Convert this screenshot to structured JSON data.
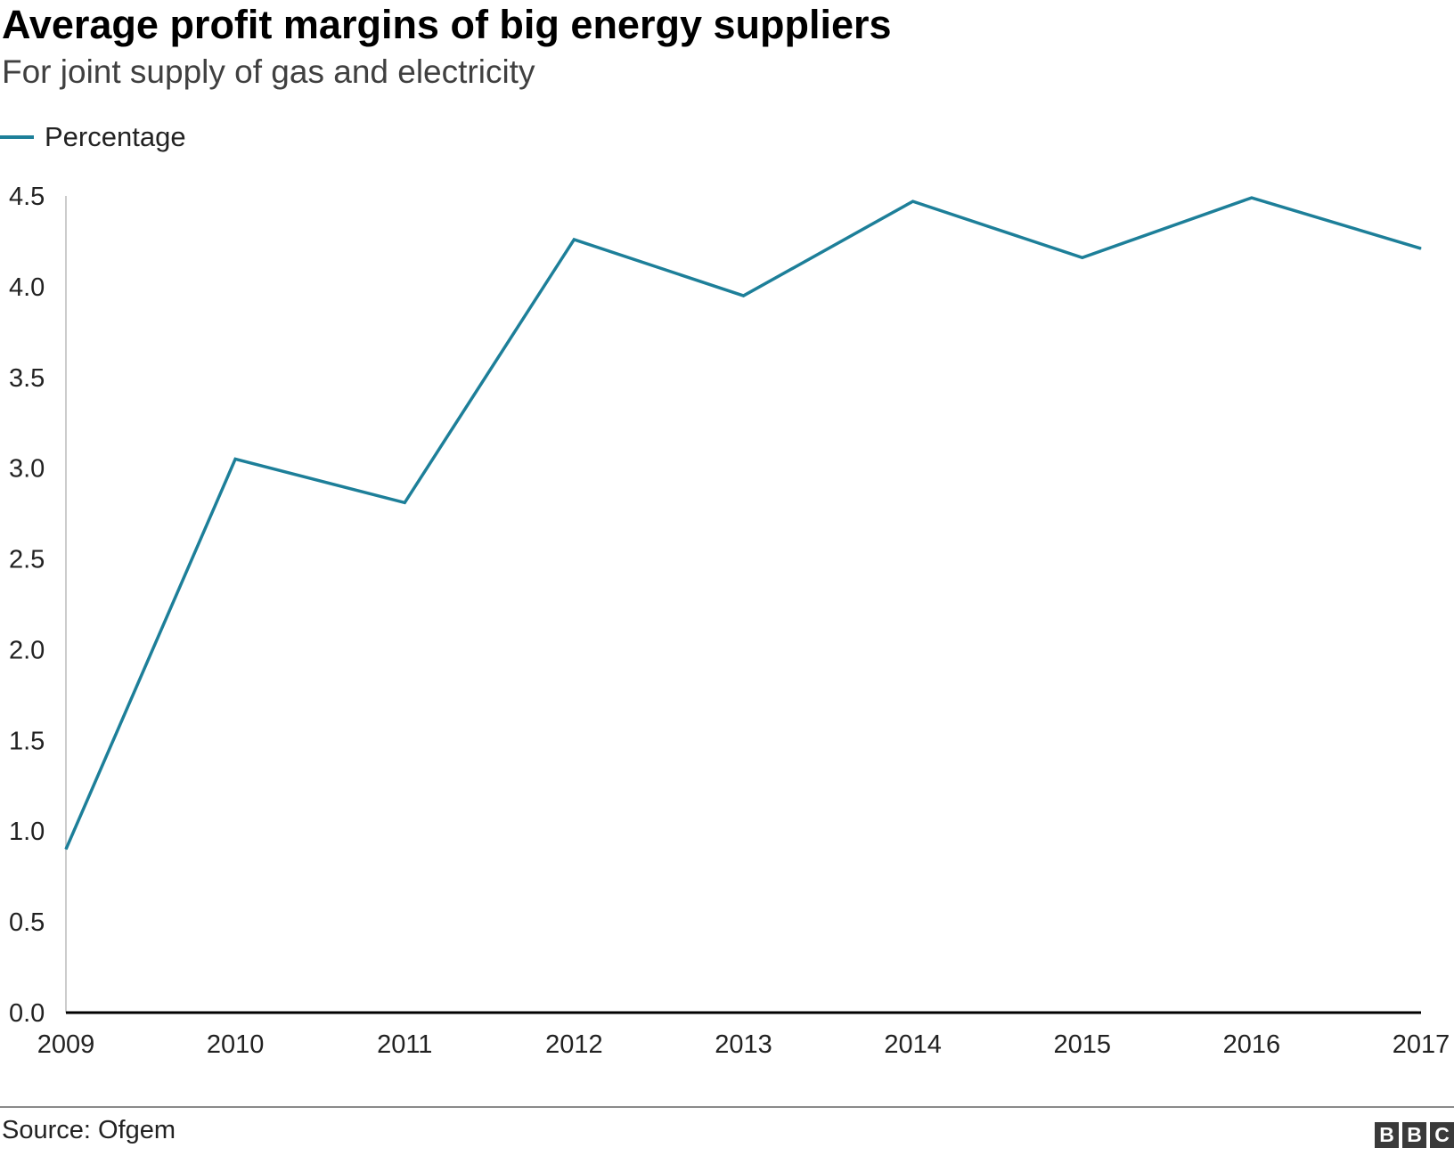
{
  "header": {
    "title": "Average profit margins of big energy suppliers",
    "subtitle": "For joint supply of gas and electricity"
  },
  "footer": {
    "source": "Source: Ofgem",
    "logo_letters": [
      "B",
      "B",
      "C"
    ]
  },
  "colors": {
    "series": "#1d7f99",
    "axis": "#000000",
    "axis_left": "#cccccc",
    "footer_rule": "#8a8a8a"
  },
  "chart_data": {
    "type": "line",
    "title": "Average profit margins of big energy suppliers",
    "subtitle": "For joint supply of gas and electricity",
    "xlabel": "",
    "ylabel": "",
    "x": [
      2009,
      2010,
      2011,
      2012,
      2013,
      2014,
      2015,
      2016,
      2017
    ],
    "x_tick_labels": [
      "2009",
      "2010",
      "2011",
      "2012",
      "2013",
      "2014",
      "2015",
      "2016",
      "2017"
    ],
    "y_ticks": [
      0.0,
      0.5,
      1.0,
      1.5,
      2.0,
      2.5,
      3.0,
      3.5,
      4.0,
      4.5
    ],
    "y_tick_labels": [
      "0.0",
      "0.5",
      "1.0",
      "1.5",
      "2.0",
      "2.5",
      "3.0",
      "3.5",
      "4.0",
      "4.5"
    ],
    "ylim": [
      0,
      4.5
    ],
    "grid": false,
    "legend": "top-left",
    "series": [
      {
        "name": "Percentage",
        "values": [
          0.9,
          3.05,
          2.81,
          4.26,
          3.95,
          4.47,
          4.16,
          4.49,
          4.21
        ]
      }
    ]
  }
}
